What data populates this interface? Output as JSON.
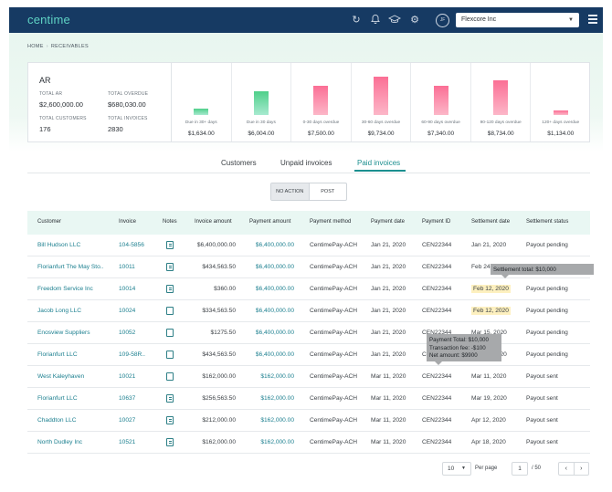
{
  "header": {
    "logo": "centime",
    "avatar_initials": "JF",
    "company": "Flexcore Inc",
    "icons": [
      "sync-icon",
      "bell-icon",
      "graduation-cap-icon",
      "gear-icon",
      "avatar",
      "menu-icon"
    ]
  },
  "breadcrumb": {
    "home": "HOME",
    "current": "RECEIVABLES"
  },
  "ar": {
    "title": "AR",
    "total_ar_label": "TOTAL AR",
    "total_ar": "$2,600,000.00",
    "total_overdue_label": "TOTAL OVERDUE",
    "total_overdue": "$680,030.00",
    "total_customers_label": "TOTAL CUSTOMERS",
    "total_customers": "176",
    "total_invoices_label": "TOTAL INVOICES",
    "total_invoices": "2830",
    "buckets": [
      {
        "label": "Due in 30+ days",
        "value": "$1,634.00",
        "amount": 1634,
        "color": "green"
      },
      {
        "label": "Due in 30 days",
        "value": "$6,004.00",
        "amount": 6004,
        "color": "green"
      },
      {
        "label": "0-30 days overdue",
        "value": "$7,500.00",
        "amount": 7500,
        "color": "pink"
      },
      {
        "label": "30-60 days overdue",
        "value": "$9,734.00",
        "amount": 9734,
        "color": "pink"
      },
      {
        "label": "60-90 days overdue",
        "value": "$7,340.00",
        "amount": 7340,
        "color": "pink"
      },
      {
        "label": "90-120 days overdue",
        "value": "$8,734.00",
        "amount": 8734,
        "color": "pink"
      },
      {
        "label": "120+ days overdue",
        "value": "$1,134.00",
        "amount": 1134,
        "color": "pink"
      }
    ],
    "colors": {
      "green_top": "#4fcf8a",
      "green_bottom": "#a8ead0",
      "pink_top": "#fb6f95",
      "pink_bottom": "#fcb7c8"
    }
  },
  "tabs": [
    {
      "label": "Customers",
      "active": false
    },
    {
      "label": "Unpaid invoices",
      "active": false
    },
    {
      "label": "Paid invoices",
      "active": true
    }
  ],
  "toggle": {
    "no_action": "NO ACTION",
    "post": "POST"
  },
  "table": {
    "headers": [
      "Customer",
      "Invoice",
      "Notes",
      "Invoice amount",
      "Payment amount",
      "Payment method",
      "Payment date",
      "Payment ID",
      "Settlement date",
      "Settlement status"
    ],
    "rows": [
      {
        "customer": "Bill Hudson LLC",
        "invoice": "104-5856",
        "note": "filled",
        "invoice_amount": "$6,400,000.00",
        "payment_amount": "$6,400,000.00",
        "method": "CentimePay-ACH",
        "payment_date": "Jan 21, 2020",
        "payment_id": "CEN22344",
        "settlement_date": "Jan 21, 2020",
        "status": "Payout pending",
        "highlight": false
      },
      {
        "customer": "Florianfurt The May Sto..",
        "invoice": "10011",
        "note": "filled",
        "invoice_amount": "$434,563.50",
        "payment_amount": "$6,400,000.00",
        "method": "CentimePay-ACH",
        "payment_date": "Jan 21, 2020",
        "payment_id": "CEN22344",
        "settlement_date": "Feb 24,",
        "status": "",
        "highlight": false
      },
      {
        "customer": "Freedom Service Inc",
        "invoice": "10014",
        "note": "filled",
        "invoice_amount": "$360.00",
        "payment_amount": "$6,400,000.00",
        "method": "CentimePay-ACH",
        "payment_date": "Jan 21, 2020",
        "payment_id": "CEN22344",
        "settlement_date": "Feb 12, 2020",
        "status": "Payout pending",
        "highlight": true
      },
      {
        "customer": "Jacob Long LLC",
        "invoice": "10024",
        "note": "empty",
        "invoice_amount": "$334,563.50",
        "payment_amount": "$6,400,000.00",
        "method": "CentimePay-ACH",
        "payment_date": "Jan 21, 2020",
        "payment_id": "CEN22344",
        "settlement_date": "Feb 12, 2020",
        "status": "Payout pending",
        "highlight": true
      },
      {
        "customer": "Enosview Suppliers",
        "invoice": "10052",
        "note": "empty",
        "invoice_amount": "$1275.50",
        "payment_amount": "$6,400,000.00",
        "method": "CentimePay-ACH",
        "payment_date": "Jan 21, 2020",
        "payment_id": "CEN22344",
        "settlement_date": "Mar 15, 2020",
        "status": "Payout pending",
        "highlight": false
      },
      {
        "customer": "Florianfurt LLC",
        "invoice": "109-58R..",
        "note": "empty",
        "invoice_amount": "$434,563.50",
        "payment_amount": "$6,400,000.00",
        "method": "CentimePay-ACH",
        "payment_date": "Jan 21, 2020",
        "payment_id": "CEN22344",
        "settlement_date": "Mar 15, 2020",
        "status": "Payout pending",
        "highlight": false
      },
      {
        "customer": "West Kaleyhaven",
        "invoice": "10021",
        "note": "empty",
        "invoice_amount": "$162,000.00",
        "payment_amount": "$162,000.00",
        "method": "CentimePay-ACH",
        "payment_date": "Mar 11, 2020",
        "payment_id": "CEN22344",
        "settlement_date": "Mar 11, 2020",
        "status": "Payout sent",
        "highlight": false
      },
      {
        "customer": "Florianfurt LLC",
        "invoice": "10637",
        "note": "filled",
        "invoice_amount": "$256,563.50",
        "payment_amount": "$162,000.00",
        "method": "CentimePay-ACH",
        "payment_date": "Mar 11, 2020",
        "payment_id": "CEN22344",
        "settlement_date": "Mar 19, 2020",
        "status": "Payout sent",
        "highlight": false
      },
      {
        "customer": "Chaddton LLC",
        "invoice": "10027",
        "note": "filled",
        "invoice_amount": "$212,000.00",
        "payment_amount": "$162,000.00",
        "method": "CentimePay-ACH",
        "payment_date": "Mar 11, 2020",
        "payment_id": "CEN22344",
        "settlement_date": "Apr 12, 2020",
        "status": "Payout sent",
        "highlight": false
      },
      {
        "customer": "North Dudley Inc",
        "invoice": "10521",
        "note": "filled",
        "invoice_amount": "$162,000.00",
        "payment_amount": "$162,000.00",
        "method": "CentimePay-ACH",
        "payment_date": "Mar 11, 2020",
        "payment_id": "CEN22344",
        "settlement_date": "Apr 18, 2020",
        "status": "Payout sent",
        "highlight": false
      }
    ]
  },
  "tooltips": {
    "settlement": "Settlement total: $10,000",
    "payment_total": "Payment Total: $10,000",
    "transaction_fee": "Transaction fee: -$100",
    "net_amount": "Net amount: $9900"
  },
  "pagination": {
    "per_page_value": "10",
    "per_page_label": "Per page",
    "page": "1",
    "of_pages": "/ 50",
    "prev": "‹",
    "next": "›"
  }
}
